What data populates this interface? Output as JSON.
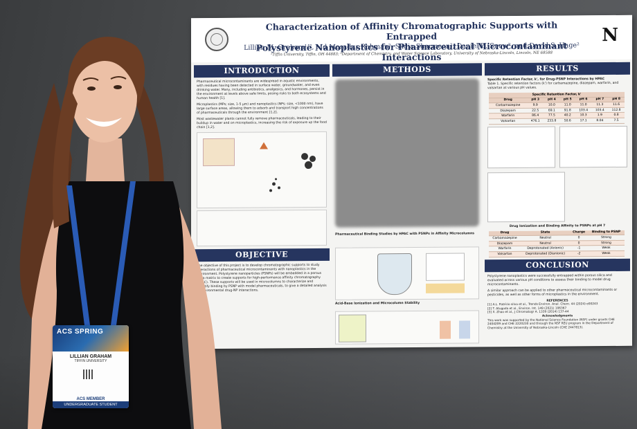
{
  "poster": {
    "title_line1": "Characterization of Affinity Chromatographic Supports with Entrapped",
    "title_line2": "Polystyrene Nanoplastics for Pharmaceutical Microcontaminant Interactions",
    "authors": "Lillian M. Graham¹ʼ², Md Masadur Rahman², Sadia Sharmeen², Daniel D. Snow², and David S. Hage²",
    "affiliations": "¹Tiffin University, Tiffin, OH 44883; ²Department of Chemistry, and Water Science Laboratory, University of Nebraska-Lincoln, Lincoln, NE 68588",
    "logo_letter": "N",
    "sections": {
      "introduction": "INTRODUCTION",
      "methods": "METHODS",
      "results": "RESULTS",
      "objective": "OBJECTIVE",
      "conclusion": "CONCLUSION"
    },
    "intro_paragraphs": [
      "Pharmaceutical microcontaminants are widespread in aquatic environments, with residues having been detected in surface water, groundwater, and even drinking water. Many, including antibiotics, analgesics, and hormones, persist in the environment at levels above safe limits, posing risks to both ecosystems and human health [1].",
      "Microplastics (MPs; size, 1-5 µm) and nanoplastics (NPs; size, <1000 nm), have large surface areas, allowing them to adsorb and transport high concentrations of pharmaceuticals through the environment [1,2].",
      "Most wastewater plants cannot fully remove pharmaceuticals, leading to their buildup in water and on microplastics, increasing the risk of exposure up the food chain [1,2]."
    ],
    "methods_sub1": "Pharmaceutical Binding Studies by HPAC with PSNPs in Affinity Microcolumns",
    "methods_sub2": "Acid-Base Ionization and Microcolumn Stability",
    "results_sub1": "Specific Retention Factor, k', for Drug-PSNP Interactions by HPAC",
    "results_table_caption": "Table 1. Specific retention factors (k') for carbamazepine, diazepam, warfarin, and valsartan at various pH values.",
    "results_table_title": "Specific Retention Factor, k'",
    "results_table_headers": [
      "Drug",
      "pH 3",
      "pH 4",
      "pH 5",
      "pH 6",
      "pH 7",
      "pH 8"
    ],
    "results_table_rows": [
      [
        "Carbamazepine",
        "9.9",
        "10.0",
        "11.0",
        "11.0",
        "11.3",
        "11.6"
      ],
      [
        "Diazepam",
        "22.5",
        "69.1",
        "91.8",
        "103.4",
        "103.4",
        "112.8"
      ],
      [
        "Warfarin",
        "86.4",
        "77.5",
        "40.2",
        "10.3",
        "1.9",
        "0.8"
      ],
      [
        "Valsartan",
        "476.1",
        "233.8",
        "50.6",
        "17.1",
        "8.04",
        "7.5"
      ]
    ],
    "ionization_title": "Drug Ionization and Binding Affinity to PSNPs at pH 7",
    "ionization_headers": [
      "Drug",
      "State",
      "Charge",
      "Binding to PSNP"
    ],
    "ionization_rows": [
      [
        "Carbamazepine",
        "Neutral",
        "0",
        "Strong"
      ],
      [
        "Diazepam",
        "Neutral",
        "0",
        "Strong"
      ],
      [
        "Warfarin",
        "Deprotonated (Anionic)",
        "-1",
        "Weak"
      ],
      [
        "Valsartan",
        "Deprotonated (Dianionic)",
        "-2",
        "Weak"
      ]
    ],
    "conclusion_points": [
      "Polystyrene nanoplastics were successfully entrapped within porous silica and evaluated across various pH conditions to assess their binding to model drug microcontaminants.",
      "A similar approach can be applied to other pharmaceutical microcontaminants or pesticides, as well as other forms of microplastics in the environment."
    ],
    "references_title": "REFERENCES",
    "references": [
      "[1] A.L. Patrício silva et al., Trends Environ. Anal. Chem. 44 (2024) e00243",
      "[2] T. Atugoda et al., Environ. Int. 149 (2021) 106367",
      "[3] X. Zhao et al., J Chromatogr A. 1339 (2014) 137-44"
    ],
    "acknowledgments_title": "Acknowledgments",
    "acknowledgments": "This work was supported by the National Science Foundation (NSF) under grants CHE 2404209 and CHE 2220230 and through the NSF REU program in the Department of Chemistry at the University of Nebraska-Lincoln (CHE 2447813).",
    "objective_text": "The objective of this project is to develop chromatographic supports to study interactions of pharmaceutical microcontaminants with nanoplastics in the environment. Polystyrene nanoparticles (PSNPs) will be embedded in a porous silica matrix to create supports for high-performance affinity chromatography (HPAC). These supports will be used in microcolumns to characterize and quantify binding by PSNP with model pharmaceuticals, to give a detailed analysis of environmental drug-NP interactions."
  },
  "badge": {
    "event": "ACS SPRING",
    "name": "LILLIAN GRAHAM",
    "org": "TIFFIN UNIVERSITY",
    "member": "ACS MEMBER",
    "status": "UNDERGRADUATE STUDENT"
  },
  "colors": {
    "poster_header_band": "#26355f",
    "wall": "#4a4c4e",
    "lanyard": "#2a5bb5",
    "dress": "#0d0d0f",
    "hair": "#6b3d24"
  }
}
